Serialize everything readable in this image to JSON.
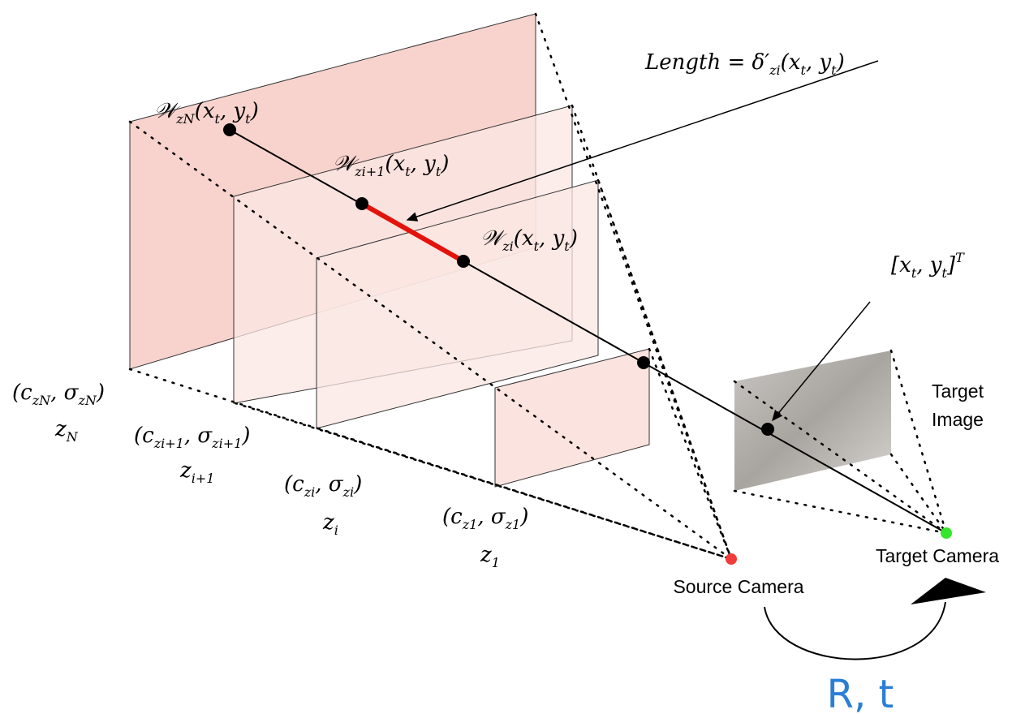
{
  "labels": {
    "wN": [
      "𝒲",
      "zN",
      "(x",
      "t",
      ", y",
      "t",
      ")"
    ],
    "wi1": [
      "𝒲",
      "zi+1",
      "(x",
      "t",
      ", y",
      "t",
      ")"
    ],
    "wi": [
      "𝒲",
      "zi",
      "(x",
      "t",
      ", y",
      "t",
      ")"
    ],
    "length": [
      "Length = δ′",
      "zi",
      "(x",
      "t",
      ", y",
      "t",
      ")"
    ],
    "point": [
      "[x",
      "t",
      ", y",
      "t",
      "]"
    ],
    "point_sup": "T",
    "cN": [
      "(c",
      "zN",
      ", σ",
      "zN",
      ")"
    ],
    "zN": [
      "z",
      "N"
    ],
    "ci1": [
      "(c",
      "zi+1",
      ", σ",
      "zi+1",
      ")"
    ],
    "zi1": [
      "z",
      "i+1"
    ],
    "ci": [
      "(c",
      "zi",
      ", σ",
      "zi",
      ")"
    ],
    "zi": [
      "z",
      "i"
    ],
    "c1": [
      "(c",
      "z1",
      ", σ",
      "z1",
      ")"
    ],
    "z1": [
      "z",
      "1"
    ]
  },
  "target_image": [
    "Target",
    "Image"
  ],
  "target_camera": "Target Camera",
  "source_camera": "Source Camera",
  "motion": "R, t"
}
